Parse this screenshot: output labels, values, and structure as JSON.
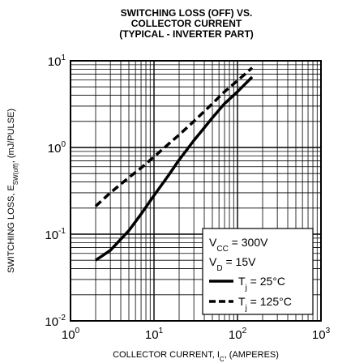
{
  "chart_data": {
    "type": "line",
    "title": [
      "SWITCHING LOSS (OFF) VS.",
      "COLLECTOR CURRENT",
      "(TYPICAL - INVERTER PART)"
    ],
    "xlabel": {
      "pre": "COLLECTOR CURRENT, I",
      "sub": "C",
      "post": ", (AMPERES)"
    },
    "ylabel": {
      "pre": "SWITCHING LOSS, E",
      "sub": "SW(off)",
      "post": ", (mJ/PULSE)"
    },
    "x_scale": "log",
    "y_scale": "log",
    "xlim": [
      1,
      1000
    ],
    "ylim": [
      0.01,
      10
    ],
    "x_ticks": [
      {
        "value": 1,
        "base": "10",
        "exp": "0"
      },
      {
        "value": 10,
        "base": "10",
        "exp": "1"
      },
      {
        "value": 100,
        "base": "10",
        "exp": "2"
      },
      {
        "value": 1000,
        "base": "10",
        "exp": "3"
      }
    ],
    "y_ticks": [
      {
        "value": 0.01,
        "base": "10",
        "exp": "-2"
      },
      {
        "value": 0.1,
        "base": "10",
        "exp": "-1"
      },
      {
        "value": 1,
        "base": "10",
        "exp": "0"
      },
      {
        "value": 10,
        "base": "10",
        "exp": "1"
      }
    ],
    "grid": true,
    "conditions": [
      {
        "pre": "V",
        "sub": "CC",
        "post": " = 300V"
      },
      {
        "pre": "V",
        "sub": "D",
        "post": " = 15V"
      }
    ],
    "series": [
      {
        "name": {
          "pre": "T",
          "sub": "j",
          "post": " = 25°C"
        },
        "style": "solid",
        "x": [
          2,
          3,
          5,
          7,
          10,
          15,
          20,
          30,
          50,
          70,
          100,
          150
        ],
        "y": [
          0.05,
          0.065,
          0.11,
          0.17,
          0.28,
          0.48,
          0.72,
          1.2,
          2.2,
          3.2,
          4.4,
          6.5
        ]
      },
      {
        "name": {
          "pre": "T",
          "sub": "j",
          "post": " = 125°C"
        },
        "style": "dashed",
        "x": [
          2,
          3,
          5,
          7,
          10,
          15,
          20,
          30,
          50,
          70,
          100,
          150
        ],
        "y": [
          0.21,
          0.3,
          0.45,
          0.58,
          0.78,
          1.1,
          1.4,
          2.0,
          3.2,
          4.4,
          5.9,
          8.3
        ]
      }
    ],
    "colors": {
      "line": "#000000",
      "grid": "#000000",
      "background": "#ffffff"
    }
  }
}
